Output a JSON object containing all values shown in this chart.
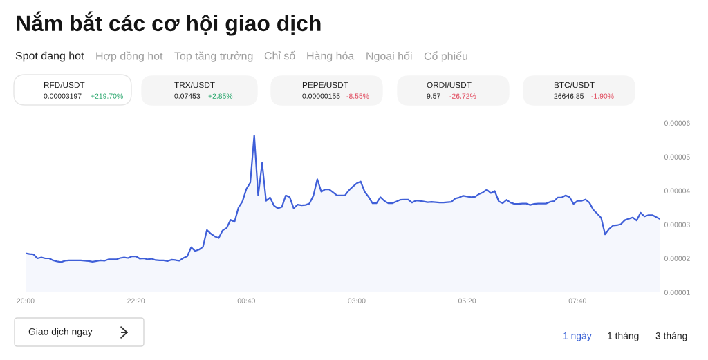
{
  "chart_data": {
    "type": "area",
    "title": "Nắm bắt các cơ hội giao dịch",
    "annotations": [
      "Spot đang hot",
      "Hợp đồng hot",
      "Top tăng trưởng",
      "Chỉ số",
      "Hàng hóa",
      "Ngoại hối",
      "Cổ phiếu",
      "RFD/USDT",
      "0.00003197",
      "+219.70%",
      "TRX/USDT",
      "0.07453",
      "+2.85%",
      "PEPE/USDT",
      "0.00000155",
      "-8.55%",
      "ORDI/USDT",
      "9.57",
      "-26.72%",
      "BTC/USDT",
      "26646.85",
      "-1.90%",
      "Giao dịch ngay",
      "1 ngày",
      "1 tháng",
      "3 tháng"
    ],
    "categories": [
      "20:00",
      null,
      null,
      null,
      null,
      null,
      null,
      null,
      null,
      null,
      null,
      null,
      null,
      null,
      null,
      null,
      null,
      null,
      null,
      null,
      null,
      null,
      null,
      null,
      null,
      null,
      null,
      null,
      "22:20",
      null,
      null,
      null,
      null,
      null,
      null,
      null,
      null,
      null,
      null,
      null,
      null,
      null,
      null,
      null,
      null,
      null,
      null,
      null,
      null,
      null,
      null,
      null,
      null,
      null,
      null,
      null,
      "00:40",
      null,
      null,
      null,
      null,
      null,
      null,
      null,
      null,
      null,
      null,
      null,
      null,
      null,
      null,
      null,
      null,
      null,
      null,
      null,
      null,
      null,
      null,
      null,
      null,
      null,
      null,
      null,
      "03:00",
      null,
      null,
      null,
      null,
      null,
      null,
      null,
      null,
      null,
      null,
      null,
      null,
      null,
      null,
      null,
      null,
      null,
      null,
      null,
      null,
      null,
      null,
      null,
      null,
      null,
      null,
      null,
      "05:20",
      null,
      null,
      null,
      null,
      null,
      null,
      null,
      null,
      null,
      null,
      null,
      null,
      null,
      null,
      null,
      null,
      null,
      null,
      null,
      null,
      null,
      null,
      null,
      null,
      null,
      null,
      null,
      "07:40",
      null,
      null,
      null,
      null,
      null,
      null,
      null,
      null,
      null,
      null,
      null,
      null,
      null,
      null,
      null,
      null,
      null,
      null,
      null,
      null,
      null
    ],
    "series": [
      {
        "color": "#3f5fd8",
        "values": [
          2.15e-05,
          2.13e-05,
          2.12e-05,
          2e-05,
          2.03e-05,
          2e-05,
          2e-05,
          1.94e-05,
          1.91e-05,
          1.89e-05,
          1.93e-05,
          1.94e-05,
          1.94e-05,
          1.94e-05,
          1.94e-05,
          1.93e-05,
          1.92e-05,
          1.9e-05,
          1.92e-05,
          1.94e-05,
          1.93e-05,
          1.97e-05,
          1.97e-05,
          1.97e-05,
          2.01e-05,
          2.03e-05,
          2.01e-05,
          2.06e-05,
          2.06e-05,
          1.99e-05,
          2e-05,
          1.97e-05,
          1.99e-05,
          1.95e-05,
          1.94e-05,
          1.94e-05,
          1.92e-05,
          1.96e-05,
          1.95e-05,
          1.93e-05,
          2.01e-05,
          2.06e-05,
          2.33e-05,
          2.22e-05,
          2.26e-05,
          2.34e-05,
          2.84e-05,
          2.73e-05,
          2.65e-05,
          2.6e-05,
          2.83e-05,
          2.9e-05,
          3.14e-05,
          3.08e-05,
          3.5e-05,
          3.68e-05,
          4.05e-05,
          4.24e-05,
          5.63e-05,
          3.86e-05,
          4.82e-05,
          3.7e-05,
          3.8e-05,
          3.56e-05,
          3.48e-05,
          3.52e-05,
          3.86e-05,
          3.81e-05,
          3.48e-05,
          3.59e-05,
          3.57e-05,
          3.58e-05,
          3.62e-05,
          3.85e-05,
          4.34e-05,
          3.97e-05,
          4.04e-05,
          4.04e-05,
          3.95e-05,
          3.86e-05,
          3.86e-05,
          3.86e-05,
          4.01e-05,
          4.12e-05,
          4.22e-05,
          4.27e-05,
          3.97e-05,
          3.82e-05,
          3.63e-05,
          3.63e-05,
          3.81e-05,
          3.7e-05,
          3.63e-05,
          3.63e-05,
          3.68e-05,
          3.73e-05,
          3.74e-05,
          3.74e-05,
          3.65e-05,
          3.71e-05,
          3.7e-05,
          3.68e-05,
          3.66e-05,
          3.67e-05,
          3.66e-05,
          3.65e-05,
          3.65e-05,
          3.66e-05,
          3.67e-05,
          3.77e-05,
          3.8e-05,
          3.85e-05,
          3.83e-05,
          3.81e-05,
          3.82e-05,
          3.9e-05,
          3.95e-05,
          4.03e-05,
          3.93e-05,
          3.99e-05,
          3.69e-05,
          3.63e-05,
          3.73e-05,
          3.65e-05,
          3.61e-05,
          3.61e-05,
          3.62e-05,
          3.62e-05,
          3.58e-05,
          3.61e-05,
          3.62e-05,
          3.62e-05,
          3.62e-05,
          3.67e-05,
          3.69e-05,
          3.8e-05,
          3.8e-05,
          3.86e-05,
          3.81e-05,
          3.61e-05,
          3.7e-05,
          3.7e-05,
          3.74e-05,
          3.65e-05,
          3.44e-05,
          3.32e-05,
          3.2e-05,
          2.71e-05,
          2.87e-05,
          2.97e-05,
          2.98e-05,
          3.01e-05,
          3.13e-05,
          3.17e-05,
          3.21e-05,
          3.12e-05,
          3.35e-05,
          3.24e-05,
          3.28e-05,
          3.28e-05,
          3.22e-05,
          3.16e-05
        ]
      }
    ],
    "ylim": [
      1e-05,
      6e-05
    ],
    "yticks": [
      {
        "value": 1e-05,
        "label": "0.00001"
      },
      {
        "value": 2e-05,
        "label": "0.00002"
      },
      {
        "value": 3e-05,
        "label": "0.00003"
      },
      {
        "value": 4e-05,
        "label": "0.00004"
      },
      {
        "value": 5e-05,
        "label": "0.00005"
      },
      {
        "value": 6e-05,
        "label": "0.00006"
      }
    ]
  }
}
